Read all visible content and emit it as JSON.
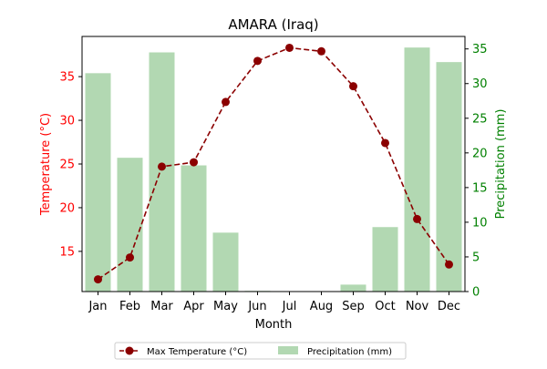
{
  "chart_data": {
    "type": "bar+line",
    "title": "AMARA (Iraq)",
    "xlabel": "Month",
    "ylabel_left": "Temperature (°C)",
    "ylabel_right": "Precipitation (mm)",
    "categories": [
      "Jan",
      "Feb",
      "Mar",
      "Apr",
      "May",
      "Jun",
      "Jul",
      "Aug",
      "Sep",
      "Oct",
      "Nov",
      "Dec"
    ],
    "ylim_left": [
      10.4,
      39.6
    ],
    "yticks_left": [
      15,
      20,
      25,
      30,
      35
    ],
    "ylim_right": [
      0,
      36.8
    ],
    "yticks_right": [
      0,
      5,
      10,
      15,
      20,
      25,
      30,
      35
    ],
    "grid": false,
    "legend_placement": "bottom-center",
    "series": [
      {
        "name": "Max Temperature (°C)",
        "kind": "line",
        "axis": "left",
        "color": "#8b0000",
        "values": [
          11.8,
          14.3,
          24.7,
          25.2,
          32.1,
          36.8,
          38.3,
          37.9,
          33.9,
          27.4,
          18.7,
          13.5
        ]
      },
      {
        "name": "Precipitation (mm)",
        "kind": "bar",
        "axis": "right",
        "color": "#b2d8b2",
        "values": [
          31.5,
          19.3,
          34.5,
          18.2,
          8.5,
          0.1,
          0.0,
          0.0,
          1.0,
          9.3,
          35.2,
          33.1
        ]
      }
    ],
    "colors": {
      "left_axis": "#ff0000",
      "right_axis": "#008000"
    }
  }
}
